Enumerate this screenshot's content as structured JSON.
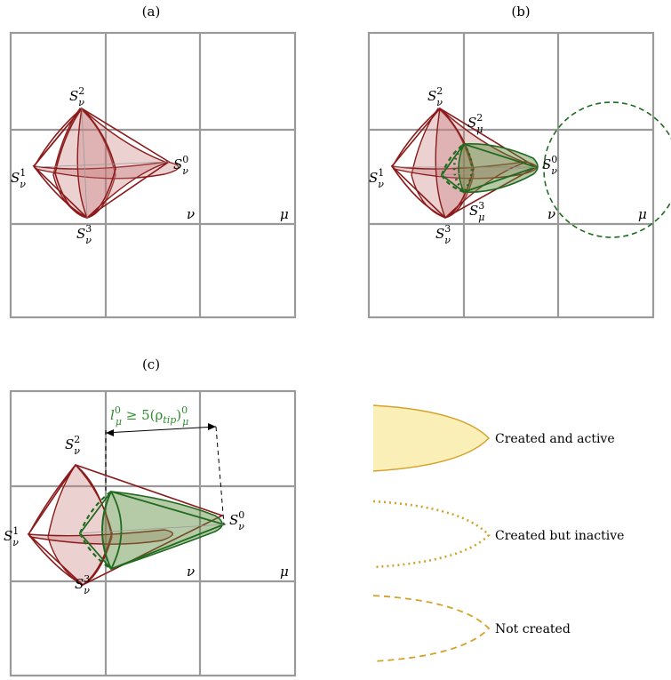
{
  "panels": {
    "a": {
      "label": "(a)"
    },
    "b": {
      "label": "(b)"
    },
    "c": {
      "label": "(c)"
    }
  },
  "labels": {
    "s0": "S",
    "s0_sup": "0",
    "s1": "S",
    "s1_sup": "1",
    "s2": "S",
    "s2_sup": "2",
    "s3": "S",
    "s3_sup": "3",
    "sub_nu": "ν",
    "sub_mu": "μ",
    "nu": "ν",
    "mu": "μ"
  },
  "annotation": {
    "l": "l",
    "l_sub": "μ",
    "l_sup": "0",
    "ineq": " ≥ 5(ρ",
    "tip": "tip",
    "close": ")",
    "close_sub": "μ",
    "close_sup": "0"
  },
  "legend": {
    "items": [
      {
        "label": "Created and active",
        "color": "#f7e9a8",
        "stroke": "#d4a22a"
      },
      {
        "label": "Created but inactive",
        "color": "#d4a22a"
      },
      {
        "label": "Not created",
        "color": "#d4a22a"
      }
    ]
  }
}
